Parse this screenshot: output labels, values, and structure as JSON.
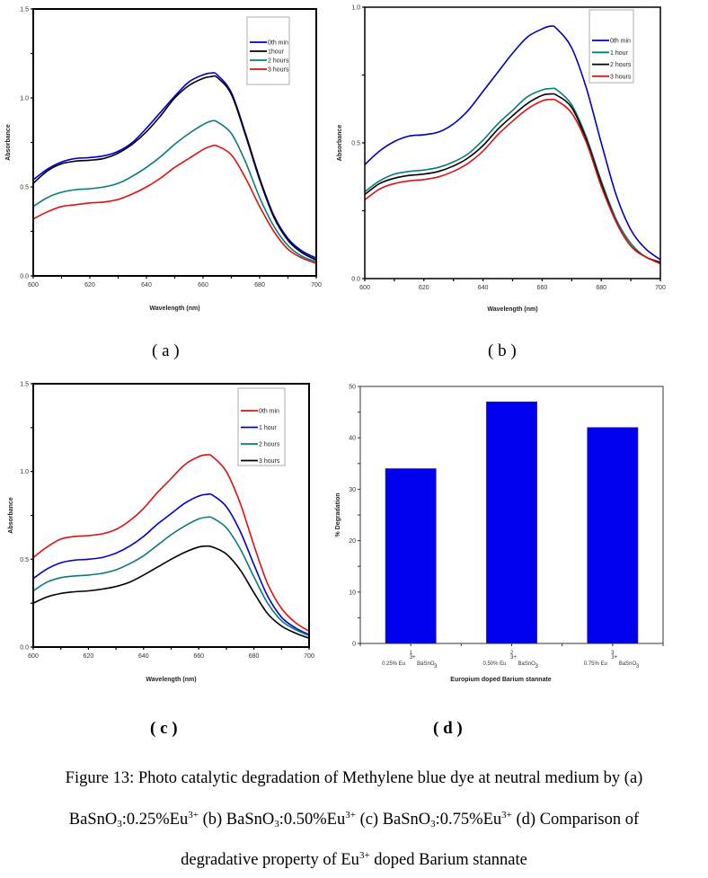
{
  "chart_data": [
    {
      "id": "a",
      "type": "line",
      "xlabel": "Wavelength (nm)",
      "ylabel": "Absorbance",
      "xlim": [
        600,
        700
      ],
      "ylim": [
        0.0,
        1.5
      ],
      "xticks": [
        "600",
        "620",
        "640",
        "660",
        "680",
        "700"
      ],
      "yticks": [
        "0.0",
        "0.5",
        "1.0",
        "1.5"
      ],
      "xtick_values": [
        600,
        620,
        640,
        660,
        680,
        700
      ],
      "ytick_values": [
        0.0,
        0.5,
        1.0,
        1.5
      ],
      "legend_position": "top-right",
      "x": [
        600,
        605,
        610,
        615,
        620,
        625,
        630,
        635,
        640,
        645,
        650,
        655,
        660,
        663,
        665,
        670,
        675,
        680,
        685,
        690,
        695,
        700
      ],
      "series": [
        {
          "name": "0th min",
          "color": "#0000cc",
          "values": [
            0.54,
            0.6,
            0.64,
            0.66,
            0.665,
            0.675,
            0.7,
            0.75,
            0.83,
            0.92,
            1.01,
            1.09,
            1.13,
            1.14,
            1.13,
            1.03,
            0.8,
            0.55,
            0.34,
            0.21,
            0.14,
            0.1
          ]
        },
        {
          "name": "1hour",
          "color": "#000000",
          "values": [
            0.52,
            0.59,
            0.63,
            0.645,
            0.65,
            0.66,
            0.69,
            0.74,
            0.81,
            0.9,
            1.0,
            1.07,
            1.11,
            1.12,
            1.115,
            1.02,
            0.79,
            0.54,
            0.33,
            0.2,
            0.13,
            0.09
          ]
        },
        {
          "name": "2 hours",
          "color": "#0a7a7a",
          "values": [
            0.39,
            0.44,
            0.47,
            0.485,
            0.49,
            0.5,
            0.52,
            0.56,
            0.61,
            0.67,
            0.74,
            0.8,
            0.85,
            0.87,
            0.865,
            0.8,
            0.64,
            0.44,
            0.28,
            0.17,
            0.11,
            0.08
          ]
        },
        {
          "name": "3 hours",
          "color": "#dd1111",
          "values": [
            0.32,
            0.36,
            0.39,
            0.4,
            0.41,
            0.415,
            0.43,
            0.46,
            0.5,
            0.55,
            0.61,
            0.66,
            0.71,
            0.73,
            0.73,
            0.68,
            0.55,
            0.39,
            0.25,
            0.15,
            0.1,
            0.07
          ]
        }
      ]
    },
    {
      "id": "b",
      "type": "line",
      "xlabel": "Wavelength (nm)",
      "ylabel": "Absorbance",
      "xlim": [
        600,
        700
      ],
      "ylim": [
        0.0,
        1.0
      ],
      "xticks": [
        "600",
        "620",
        "640",
        "660",
        "680",
        "700"
      ],
      "yticks": [
        "0.0",
        "0.5",
        "1.0"
      ],
      "xtick_values": [
        600,
        620,
        640,
        660,
        680,
        700
      ],
      "ytick_values": [
        0.0,
        0.5,
        1.0
      ],
      "legend_position": "top-right",
      "x": [
        600,
        605,
        610,
        615,
        620,
        625,
        630,
        635,
        640,
        645,
        650,
        655,
        660,
        663,
        665,
        670,
        675,
        680,
        685,
        690,
        695,
        700
      ],
      "series": [
        {
          "name": "0th min",
          "color": "#0000bb",
          "values": [
            0.42,
            0.47,
            0.505,
            0.525,
            0.53,
            0.54,
            0.57,
            0.62,
            0.69,
            0.76,
            0.83,
            0.89,
            0.92,
            0.93,
            0.92,
            0.85,
            0.7,
            0.5,
            0.31,
            0.18,
            0.11,
            0.07
          ]
        },
        {
          "name": "1 hour",
          "color": "#0a7a7a",
          "values": [
            0.32,
            0.36,
            0.385,
            0.395,
            0.4,
            0.41,
            0.43,
            0.46,
            0.51,
            0.57,
            0.62,
            0.67,
            0.695,
            0.7,
            0.695,
            0.64,
            0.52,
            0.36,
            0.22,
            0.13,
            0.08,
            0.06
          ]
        },
        {
          "name": "2 hours",
          "color": "#000000",
          "values": [
            0.31,
            0.35,
            0.37,
            0.38,
            0.385,
            0.395,
            0.415,
            0.445,
            0.49,
            0.55,
            0.6,
            0.645,
            0.675,
            0.68,
            0.675,
            0.63,
            0.51,
            0.35,
            0.21,
            0.12,
            0.08,
            0.06
          ]
        },
        {
          "name": "3 hours",
          "color": "#dd1111",
          "values": [
            0.29,
            0.33,
            0.35,
            0.36,
            0.365,
            0.375,
            0.395,
            0.425,
            0.47,
            0.53,
            0.58,
            0.625,
            0.655,
            0.66,
            0.655,
            0.61,
            0.5,
            0.34,
            0.21,
            0.12,
            0.08,
            0.055
          ]
        }
      ]
    },
    {
      "id": "c",
      "type": "line",
      "xlabel": "Wavelength (nm)",
      "ylabel": "Absorbance",
      "xlim": [
        600,
        700
      ],
      "ylim": [
        0.0,
        1.5
      ],
      "xticks": [
        "600",
        "620",
        "640",
        "660",
        "680",
        "700"
      ],
      "yticks": [
        "0.0",
        "0.5",
        "1.0",
        "1.5"
      ],
      "xtick_values": [
        600,
        620,
        640,
        660,
        680,
        700
      ],
      "ytick_values": [
        0.0,
        0.5,
        1.0,
        1.5
      ],
      "legend_position": "top-right",
      "x": [
        600,
        605,
        610,
        615,
        620,
        625,
        630,
        635,
        640,
        645,
        650,
        655,
        660,
        663,
        665,
        670,
        675,
        680,
        685,
        690,
        695,
        700
      ],
      "series": [
        {
          "name": "0th min",
          "color": "#dd1111",
          "values": [
            0.51,
            0.57,
            0.615,
            0.63,
            0.635,
            0.645,
            0.67,
            0.72,
            0.79,
            0.88,
            0.96,
            1.04,
            1.085,
            1.095,
            1.085,
            1.0,
            0.82,
            0.58,
            0.36,
            0.22,
            0.14,
            0.09
          ]
        },
        {
          "name": "1 hour",
          "color": "#0000cc",
          "values": [
            0.39,
            0.445,
            0.48,
            0.495,
            0.5,
            0.51,
            0.535,
            0.575,
            0.63,
            0.7,
            0.76,
            0.82,
            0.86,
            0.87,
            0.865,
            0.8,
            0.66,
            0.47,
            0.29,
            0.17,
            0.11,
            0.07
          ]
        },
        {
          "name": "2 hours",
          "color": "#0a7a7a",
          "values": [
            0.32,
            0.37,
            0.395,
            0.405,
            0.41,
            0.42,
            0.44,
            0.475,
            0.52,
            0.58,
            0.64,
            0.69,
            0.73,
            0.74,
            0.735,
            0.68,
            0.56,
            0.4,
            0.25,
            0.15,
            0.1,
            0.065
          ]
        },
        {
          "name": "3 hours",
          "color": "#000000",
          "values": [
            0.25,
            0.285,
            0.305,
            0.315,
            0.32,
            0.33,
            0.345,
            0.37,
            0.41,
            0.455,
            0.5,
            0.54,
            0.57,
            0.575,
            0.57,
            0.53,
            0.44,
            0.31,
            0.19,
            0.12,
            0.08,
            0.05
          ]
        }
      ]
    },
    {
      "id": "d",
      "type": "bar",
      "xlabel": "Europium doped Barium stannate",
      "ylabel": "% Degradation",
      "ylim": [
        0,
        50
      ],
      "yticks": [
        "0",
        "10",
        "20",
        "30",
        "40",
        "50"
      ],
      "ytick_values": [
        0,
        10,
        20,
        30,
        40,
        50
      ],
      "categories": [
        {
          "index": "1",
          "prefix": "0.25% Eu",
          "sup": "3+",
          "suffix": "BaSnO",
          "sub": "3"
        },
        {
          "index": "2",
          "prefix": "0.50% Eu",
          "sup": "3+",
          "suffix": "BaSnO",
          "sub": "3"
        },
        {
          "index": "3",
          "prefix": "0.75% Eu",
          "sup": "3+",
          "suffix": "BaSnO",
          "sub": "3"
        }
      ],
      "values": [
        34,
        47,
        42
      ],
      "bar_color": "#0000ee"
    }
  ],
  "panel_labels": {
    "a": "( a )",
    "b": "( b )",
    "c": "( c )",
    "d": "( d )"
  },
  "caption": {
    "line1": "Figure 13: Photo catalytic degradation of Methylene blue dye at neutral medium by (a)",
    "line2": {
      "p1": "BaSnO",
      "p1sub": "3",
      "p1b": ":0.25%Eu",
      "p1sup": "3+",
      "p2": " (b) BaSnO",
      "p2sub": "3",
      "p2b": ":0.50%Eu",
      "p2sup": "3+",
      "p3": " (c) BaSnO",
      "p3sub": "3",
      "p3b": ":0.75%Eu",
      "p3sup": "3+",
      "p4": " (d) Comparison of"
    },
    "line3": {
      "p1": "degradative property  of Eu",
      "p1sup": "3+",
      "p2": " doped Barium stannate"
    }
  }
}
